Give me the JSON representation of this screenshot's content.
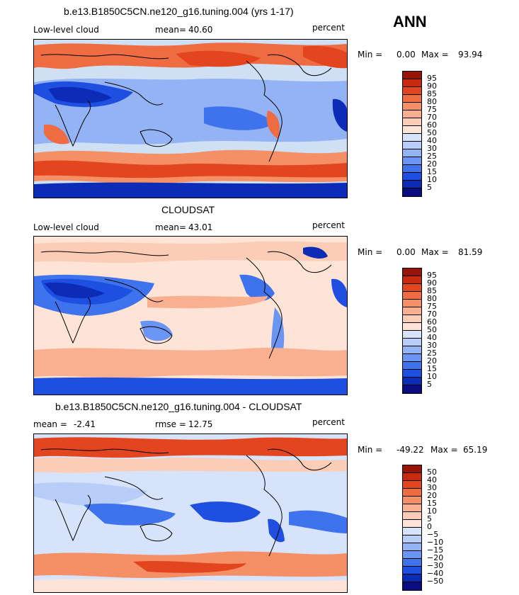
{
  "season": "ANN",
  "palette": {
    "pos": [
      "#0a0d80",
      "#0c2cb8",
      "#1f4fe0",
      "#3f73ee",
      "#6b95f2",
      "#93b3f5",
      "#b8cef8",
      "#d6e3fb",
      "#eef3fc",
      "#fde4d6",
      "#fbcdb6",
      "#f9b090",
      "#f59066",
      "#ef6c43",
      "#e3461f",
      "#c82a0f",
      "#98140a"
    ],
    "land_outline": "#000000"
  },
  "panels": [
    {
      "title": "b.e13.B1850C5CN.ne120_g16.tuning.004 (yrs 1-17)",
      "variable": "Low-level cloud",
      "mean_label": "mean=",
      "mean_value": "40.60",
      "units": "percent",
      "min_label": "Min =",
      "min_value": "0.00",
      "max_label": "Max =",
      "max_value": "93.94",
      "levels": [
        "95",
        "90",
        "85",
        "80",
        "75",
        "70",
        "60",
        "50",
        "40",
        "30",
        "25",
        "20",
        "15",
        "10",
        "5"
      ]
    },
    {
      "title": "CLOUDSAT",
      "variable": "Low-level cloud",
      "mean_label": "mean=",
      "mean_value": "43.01",
      "units": "percent",
      "min_label": "Min =",
      "min_value": "0.00",
      "max_label": "Max =",
      "max_value": "81.59",
      "levels": [
        "95",
        "90",
        "85",
        "80",
        "75",
        "70",
        "60",
        "50",
        "40",
        "30",
        "25",
        "20",
        "15",
        "10",
        "5"
      ]
    },
    {
      "title": "b.e13.B1850C5CN.ne120_g16.tuning.004 - CLOUDSAT",
      "mean_label": "mean =",
      "mean_value": "-2.41",
      "rmse_label": "rmse =",
      "rmse_value": "12.75",
      "units": "percent",
      "min_label": "Min =",
      "min_value": "-49.22",
      "max_label": "Max =",
      "max_value": "65.19",
      "levels": [
        "50",
        "40",
        "30",
        "20",
        "15",
        "10",
        "5",
        "0",
        "−5",
        "−10",
        "−15",
        "−20",
        "−30",
        "−40",
        "−50"
      ]
    }
  ]
}
